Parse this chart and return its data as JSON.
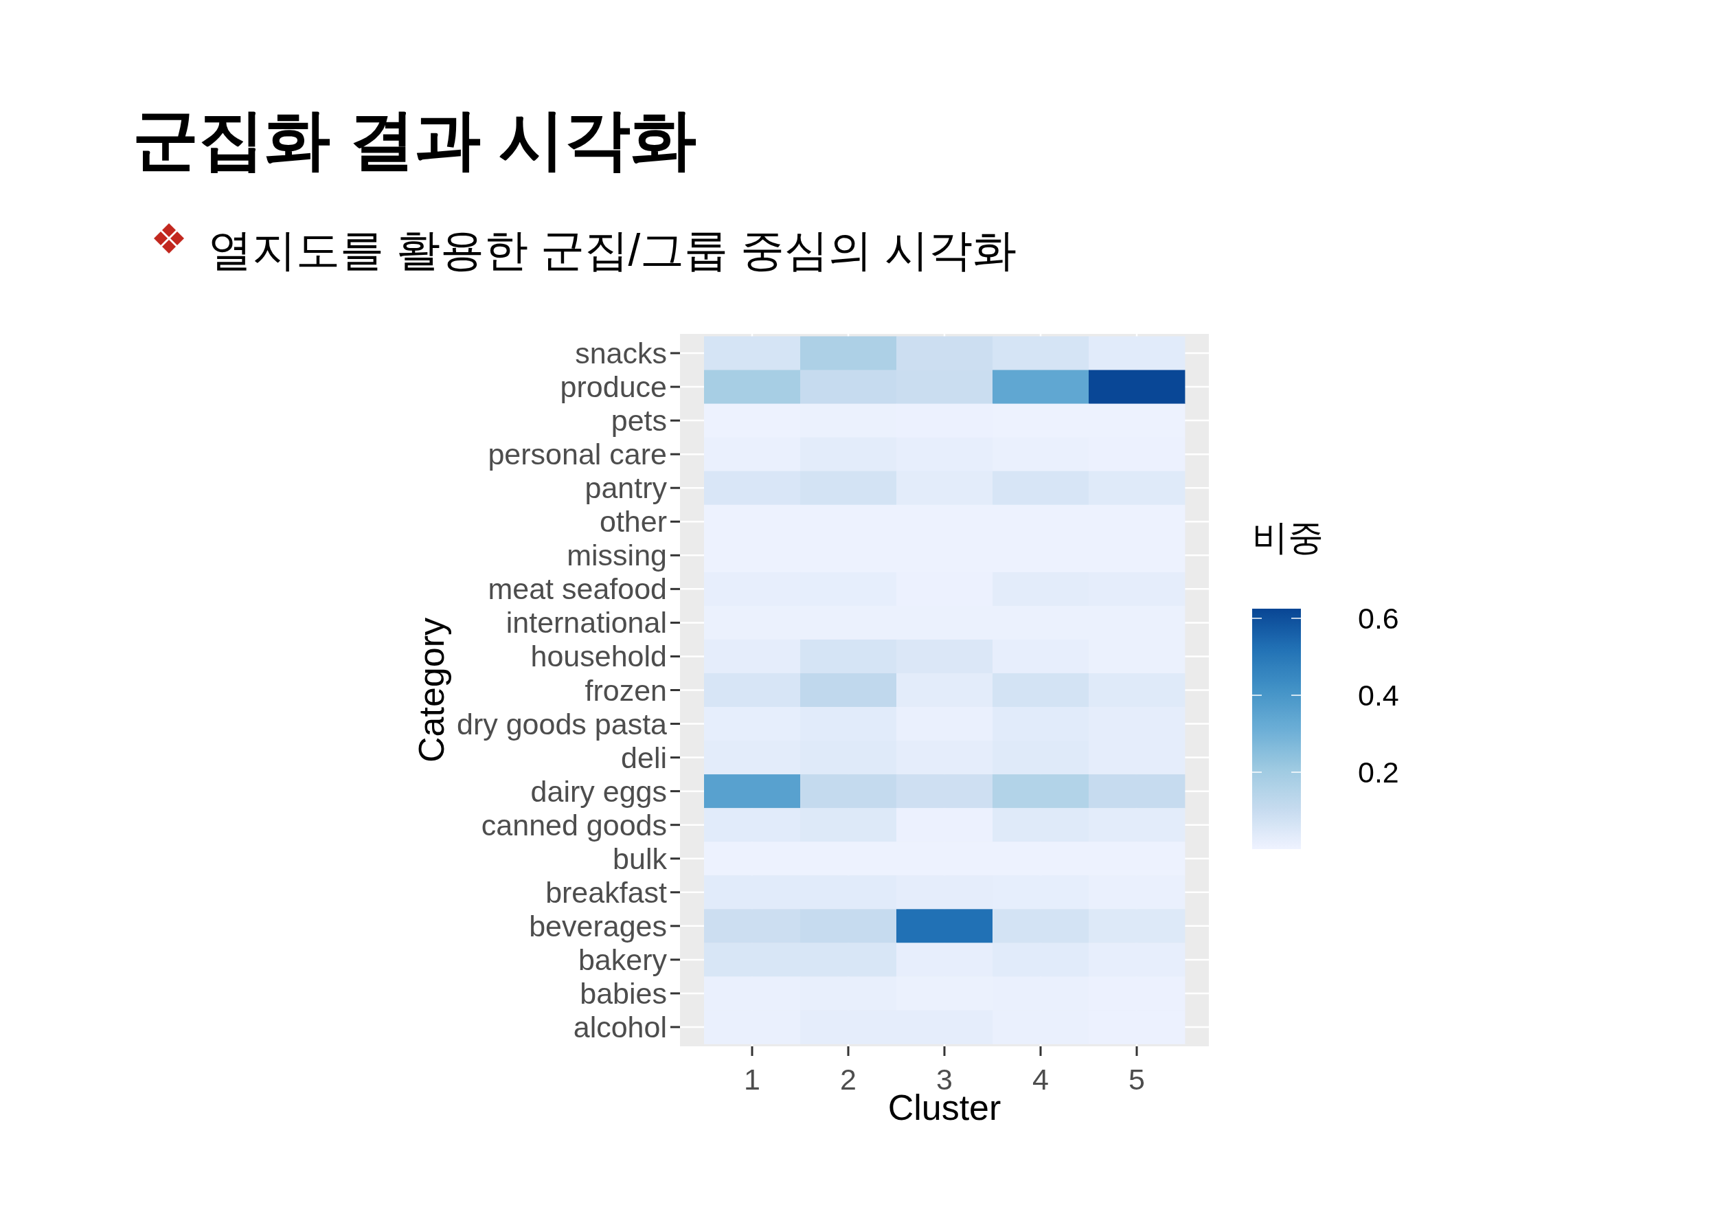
{
  "chart_data": {
    "type": "heatmap",
    "title": "군집화 결과 시각화",
    "subtitle": "열지도를 활용한 군집/그룹 중심의 시각화",
    "xlabel": "Cluster",
    "ylabel": "Category",
    "clabel": "비중",
    "x": [
      1,
      2,
      3,
      4,
      5
    ],
    "xlim": [
      0.25,
      5.75
    ],
    "xticks": [
      1,
      2,
      3,
      4,
      5
    ],
    "y_categories": [
      "snacks",
      "produce",
      "pets",
      "personal care",
      "pantry",
      "other",
      "missing",
      "meat seafood",
      "international",
      "household",
      "frozen",
      "dry goods pasta",
      "deli",
      "dairy eggs",
      "canned goods",
      "bulk",
      "breakfast",
      "beverages",
      "bakery",
      "babies",
      "alcohol"
    ],
    "cells": [
      [
        0.065,
        0.17,
        0.09,
        0.065,
        0.035
      ],
      [
        0.185,
        0.105,
        0.095,
        0.34,
        0.62
      ],
      [
        0.005,
        0.01,
        0.008,
        0.005,
        0.005
      ],
      [
        0.012,
        0.03,
        0.02,
        0.012,
        0.008
      ],
      [
        0.055,
        0.07,
        0.03,
        0.06,
        0.04
      ],
      [
        0.006,
        0.006,
        0.006,
        0.006,
        0.006
      ],
      [
        0.006,
        0.006,
        0.006,
        0.006,
        0.006
      ],
      [
        0.02,
        0.022,
        0.008,
        0.03,
        0.025
      ],
      [
        0.01,
        0.01,
        0.01,
        0.01,
        0.01
      ],
      [
        0.025,
        0.065,
        0.05,
        0.02,
        0.01
      ],
      [
        0.06,
        0.12,
        0.03,
        0.07,
        0.04
      ],
      [
        0.022,
        0.035,
        0.012,
        0.035,
        0.025
      ],
      [
        0.03,
        0.04,
        0.025,
        0.04,
        0.025
      ],
      [
        0.36,
        0.11,
        0.085,
        0.155,
        0.105
      ],
      [
        0.035,
        0.045,
        0.008,
        0.04,
        0.03
      ],
      [
        0.004,
        0.004,
        0.004,
        0.004,
        0.004
      ],
      [
        0.035,
        0.035,
        0.025,
        0.022,
        0.012
      ],
      [
        0.09,
        0.105,
        0.52,
        0.07,
        0.045
      ],
      [
        0.058,
        0.058,
        0.02,
        0.035,
        0.02
      ],
      [
        0.012,
        0.018,
        0.01,
        0.012,
        0.008
      ],
      [
        0.012,
        0.025,
        0.025,
        0.012,
        0.008
      ]
    ],
    "clim": [
      0,
      0.625
    ],
    "cticks": [
      0.2,
      0.4,
      0.6
    ],
    "colors": [
      "#eff3ff",
      "#c6dbef",
      "#9ecae1",
      "#6baed6",
      "#4292c6",
      "#2171b5",
      "#084594"
    ],
    "grid": true
  }
}
